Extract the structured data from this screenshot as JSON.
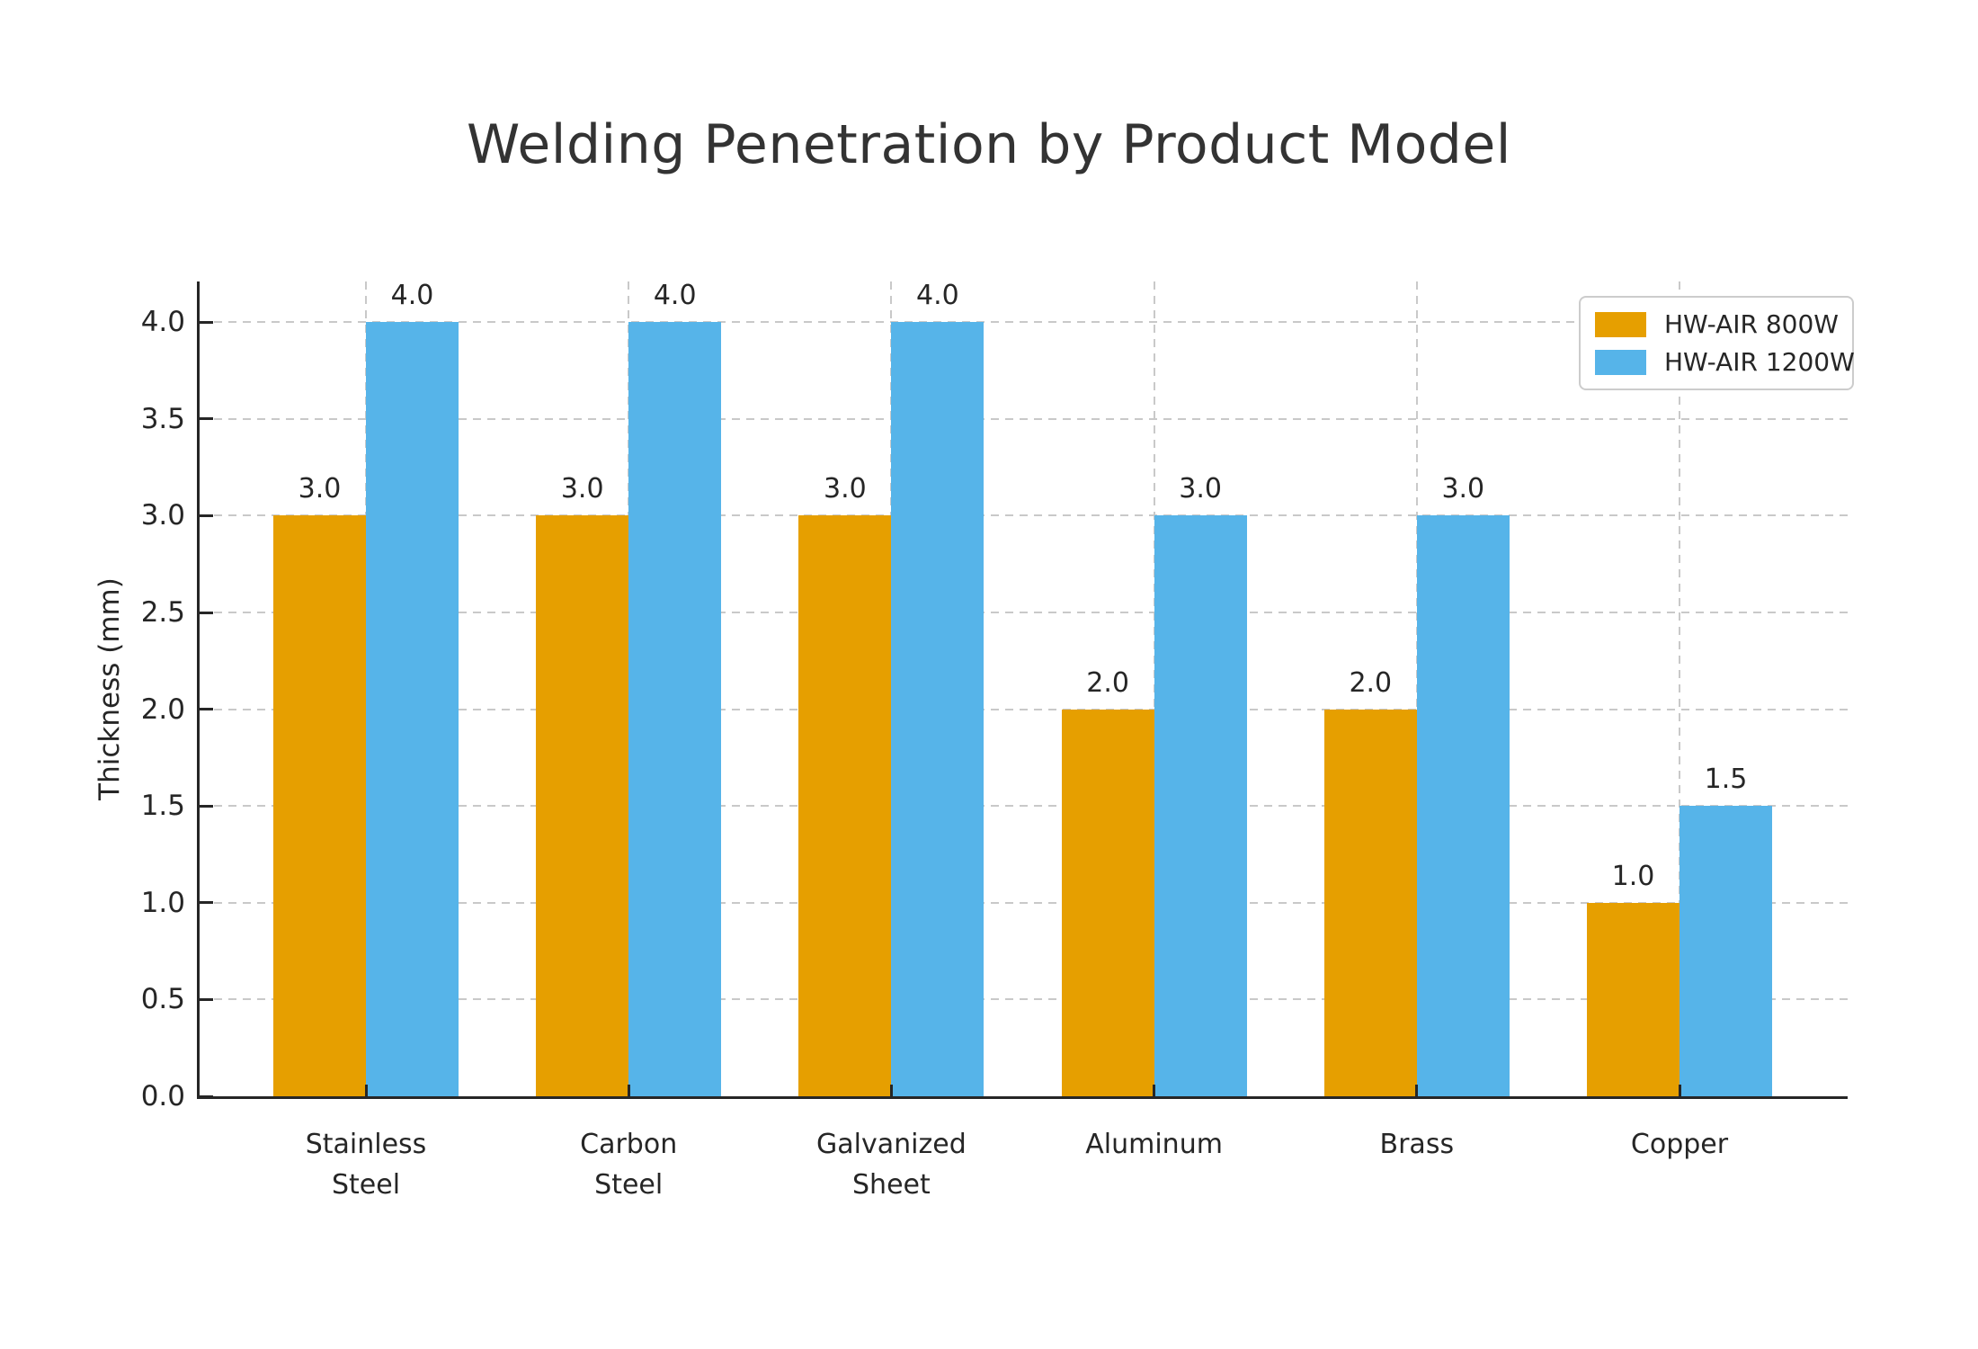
{
  "chart_data": {
    "type": "bar",
    "title": "Welding Penetration by Product Model",
    "xlabel": "",
    "ylabel": "Thickness (mm)",
    "categories": [
      "Stainless\nSteel",
      "Carbon\nSteel",
      "Galvanized\nSheet",
      "Aluminum",
      "Brass",
      "Copper"
    ],
    "series": [
      {
        "name": "HW-AIR 800W",
        "color": "#E69F00",
        "values": [
          3.0,
          3.0,
          3.0,
          2.0,
          2.0,
          1.0
        ]
      },
      {
        "name": "HW-AIR 1200W",
        "color": "#56B4E9",
        "values": [
          4.0,
          4.0,
          4.0,
          3.0,
          3.0,
          1.5
        ]
      }
    ],
    "yticks": [
      0.0,
      0.5,
      1.0,
      1.5,
      2.0,
      2.5,
      3.0,
      3.5,
      4.0
    ],
    "ylim": [
      0,
      4.21
    ],
    "grid": true,
    "grid_style": "dashed",
    "legend_position": "upper right",
    "value_labels_shown": true,
    "colors": {
      "grid": "#c9c9c9",
      "axis": "#262626",
      "text": "#262626",
      "title": "#333333",
      "background": "#ffffff",
      "legend_border": "#cccccc"
    }
  }
}
